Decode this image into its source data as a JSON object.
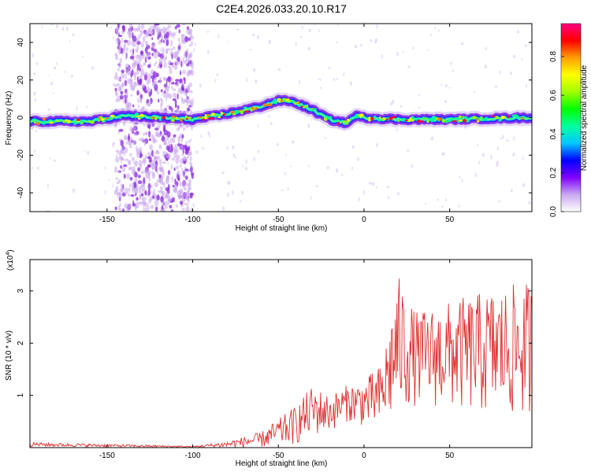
{
  "title": "C2E4.2026.033.20.10.R17",
  "chart_data": [
    {
      "type": "heatmap",
      "xlabel": "Height of straight line (km)",
      "ylabel": "Frequency (Hz)",
      "xlim": [
        -195,
        98
      ],
      "ylim": [
        -50,
        50
      ],
      "xticks": [
        -150,
        -100,
        -50,
        0,
        50
      ],
      "xtick_labels": [
        "-150",
        "-100",
        "-50",
        "0",
        "50"
      ],
      "yticks": [
        -40,
        -20,
        0,
        20,
        40
      ],
      "ytick_labels": [
        "-40",
        "-20",
        "0",
        "20",
        "40"
      ],
      "ridge": {
        "x": [
          -195,
          -160,
          -140,
          -120,
          -100,
          -80,
          -60,
          -50,
          -45,
          -40,
          -30,
          -20,
          -10,
          -5,
          0,
          20,
          50,
          98
        ],
        "y": [
          -2,
          -2,
          1,
          0,
          -1,
          2,
          6,
          9,
          9,
          8,
          4,
          -1,
          -3,
          1,
          0,
          -1,
          -1,
          0
        ]
      },
      "noise_band_x": [
        -145,
        -100
      ],
      "colorbar": {
        "label": "Normalized spectral amplitude",
        "range": [
          0,
          0.97
        ],
        "ticks": [
          0.0,
          0.2,
          0.4,
          0.6,
          0.8
        ],
        "tick_labels": [
          "0.0",
          "0.2",
          "0.4",
          "0.6",
          "0.8"
        ],
        "colors": [
          "#ffffff",
          "#c8a8f0",
          "#8000ff",
          "#0000ff",
          "#00c8ff",
          "#00ffa0",
          "#00ff00",
          "#a0ff00",
          "#ffff00",
          "#ffa000",
          "#ff0000",
          "#ff0080"
        ]
      }
    },
    {
      "type": "line",
      "xlabel": "Height of straight line (km)",
      "ylabel": "SNR (10 * v/v)",
      "multiplier_label": "(x10",
      "multiplier_exp": "4",
      "xlim": [
        -195,
        98
      ],
      "ylim": [
        0,
        3.6
      ],
      "xticks": [
        -150,
        -100,
        -50,
        0,
        50
      ],
      "xtick_labels": [
        "-150",
        "-100",
        "-50",
        "0",
        "50"
      ],
      "yticks": [
        1,
        2,
        3
      ],
      "ytick_labels": [
        "1",
        "2",
        "3"
      ],
      "color": "#e03030",
      "envelope": {
        "x": [
          -195,
          -100,
          -80,
          -60,
          -50,
          -40,
          -30,
          -20,
          -10,
          0,
          10,
          20,
          30,
          50,
          70,
          98
        ],
        "low": [
          0.02,
          0.0,
          0.0,
          0.0,
          0.02,
          0.05,
          0.2,
          0.3,
          0.5,
          0.4,
          0.3,
          0.6,
          0.8,
          0.7,
          0.6,
          0.5
        ],
        "high": [
          0.1,
          0.03,
          0.12,
          0.3,
          0.55,
          0.8,
          1.2,
          1.0,
          1.2,
          1.3,
          1.6,
          3.3,
          2.6,
          2.8,
          3.0,
          3.2
        ]
      }
    }
  ]
}
